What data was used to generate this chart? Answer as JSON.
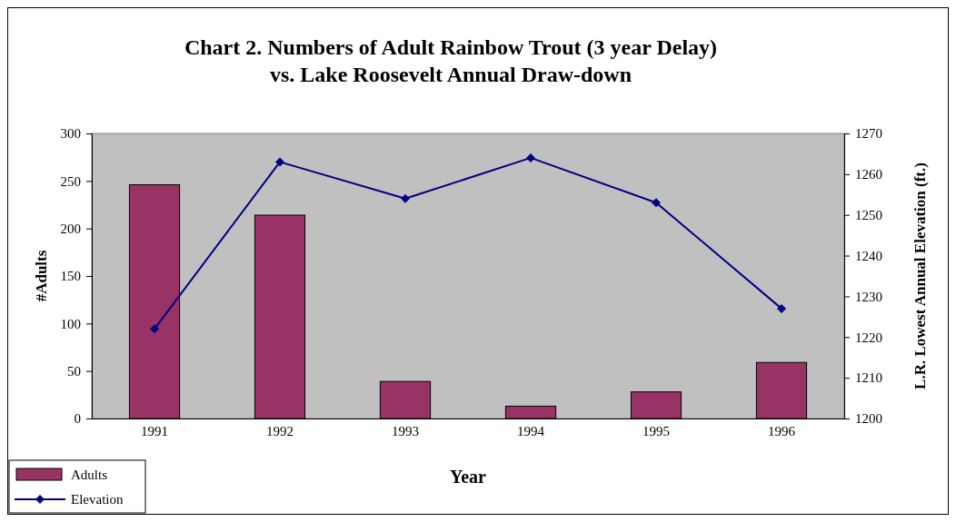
{
  "chart_data": {
    "type": "bar",
    "title": "Chart 2. Numbers of Adult Rainbow Trout (3 year Delay)\nvs. Lake Roosevelt Annual Draw-down",
    "xlabel": "Year",
    "ylabel": "#Adults",
    "y2label": "L.R. Lowest Annual Elevation (ft.)",
    "categories": [
      "1991",
      "1992",
      "1993",
      "1994",
      "1995",
      "1996"
    ],
    "series": [
      {
        "name": "Adults",
        "color": "#993366",
        "values": [
          246,
          214,
          39,
          13,
          28,
          59
        ]
      },
      {
        "name": "Elevation",
        "type": "line",
        "axis": "y2",
        "color": "#000080",
        "marker": "diamond",
        "values": [
          1222,
          1263,
          1254,
          1264,
          1253,
          1227
        ]
      }
    ],
    "ylim": [
      0,
      300
    ],
    "yticks": [
      0,
      50,
      100,
      150,
      200,
      250,
      300
    ],
    "y2lim": [
      1200,
      1270
    ],
    "y2ticks": [
      1200,
      1210,
      1220,
      1230,
      1240,
      1250,
      1260,
      1270
    ],
    "legend": "bottom left",
    "grid": false
  }
}
